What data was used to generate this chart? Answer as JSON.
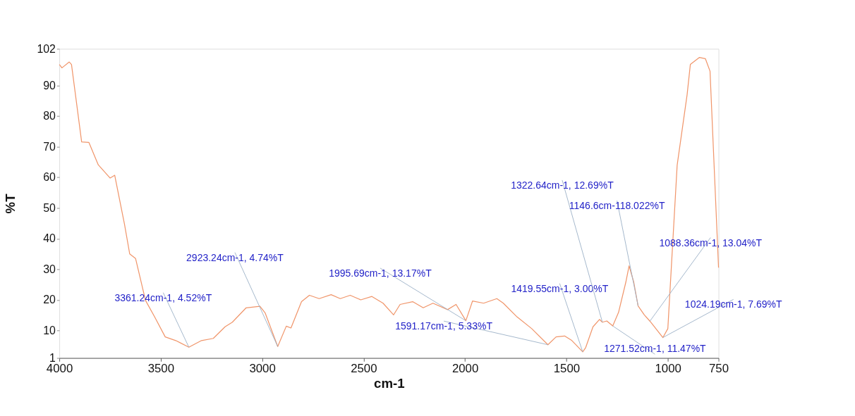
{
  "chart_data": {
    "type": "line",
    "xlabel": "cm-1",
    "ylabel": "%T",
    "xlim": [
      4000,
      750
    ],
    "ylim": [
      1,
      102
    ],
    "xticks": [
      4000,
      3500,
      3000,
      2500,
      2000,
      1500,
      1000,
      750
    ],
    "yticks": [
      1,
      10,
      20,
      30,
      40,
      50,
      60,
      70,
      80,
      90,
      102
    ],
    "grid": false,
    "marker": "none",
    "line_style": "solid",
    "series": [
      {
        "color": "#f0956a",
        "x": [
          4000,
          3987,
          3951,
          3940,
          3890,
          3854,
          3808,
          3750,
          3727,
          3679,
          3653,
          3624,
          3575,
          3530,
          3478,
          3426,
          3361.24,
          3299,
          3241,
          3183,
          3147,
          3079,
          3011,
          2985,
          2923.24,
          2881,
          2858,
          2806,
          2767,
          2719,
          2660,
          2615,
          2566,
          2514,
          2459,
          2404,
          2352,
          2320,
          2258,
          2206,
          2158,
          2086,
          2044,
          1995.69,
          1963,
          1908,
          1843,
          1811,
          1743,
          1671,
          1591.17,
          1551,
          1509,
          1473,
          1419.55,
          1405,
          1369,
          1337,
          1322.64,
          1301,
          1271.52,
          1243,
          1207,
          1191,
          1168,
          1146.6,
          1116,
          1088.36,
          1024.19,
          1000,
          954,
          905,
          889,
          844,
          815,
          792,
          750
        ],
        "values": [
          96.9,
          95.8,
          97.7,
          96.9,
          71.6,
          71.4,
          64.1,
          59.8,
          60.7,
          44.8,
          35,
          33.5,
          19.8,
          14.4,
          7.9,
          6.7,
          4.52,
          6.7,
          7.4,
          11.2,
          12.7,
          17.4,
          17.9,
          15.7,
          4.74,
          11.4,
          10.8,
          19.4,
          21.5,
          20.4,
          21.7,
          20.4,
          21.5,
          20,
          21.1,
          18.9,
          15.1,
          18.5,
          19.4,
          17.4,
          18.9,
          16.8,
          18.5,
          13.17,
          19.6,
          18.9,
          20.4,
          18.9,
          14.4,
          10.6,
          5.33,
          7.9,
          8.2,
          6.7,
          3.0,
          4.4,
          11.2,
          13.6,
          12.69,
          13.1,
          11.47,
          15.9,
          25.8,
          31.1,
          25.8,
          18.022,
          15.1,
          13.04,
          7.69,
          10.6,
          64,
          87,
          96.9,
          99.2,
          98.8,
          94.7,
          30.5
        ]
      }
    ],
    "annotations": [
      {
        "text": "3361.24cm-1, 4.52%T",
        "x": 3361.24,
        "y": 4.52
      },
      {
        "text": "2923.24cm-1, 4.74%T",
        "x": 2923.24,
        "y": 4.74
      },
      {
        "text": "1995.69cm-1, 13.17%T",
        "x": 1995.69,
        "y": 13.17
      },
      {
        "text": "1591.17cm-1, 5.33%T",
        "x": 1591.17,
        "y": 5.33
      },
      {
        "text": "1419.55cm-1, 3.00%T",
        "x": 1419.55,
        "y": 3.0
      },
      {
        "text": "1322.64cm-1, 12.69%T",
        "x": 1322.64,
        "y": 12.69
      },
      {
        "text": "1146.6cm-118.022%T",
        "x": 1146.6,
        "y": 18.022
      },
      {
        "text": "1088.36cm-1, 13.04%T",
        "x": 1088.36,
        "y": 13.04
      },
      {
        "text": "1024.19cm-1, 7.69%T",
        "x": 1024.19,
        "y": 7.69
      },
      {
        "text": "1271.52cm-1, 11.47%T",
        "x": 1271.52,
        "y": 11.47
      }
    ]
  }
}
